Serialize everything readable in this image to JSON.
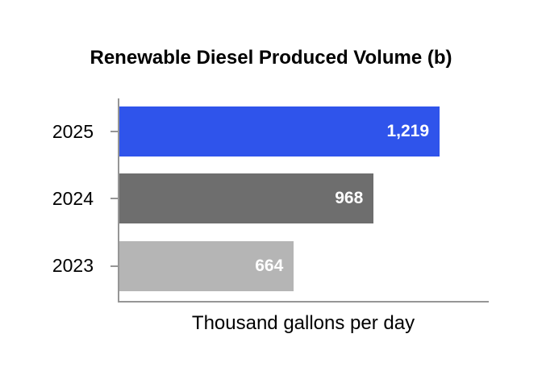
{
  "chart_data": {
    "type": "bar",
    "orientation": "horizontal",
    "title": "Renewable Diesel Produced Volume (b)",
    "xlabel": "Thousand gallons per day",
    "ylabel": "",
    "categories": [
      "2025",
      "2024",
      "2023"
    ],
    "values": [
      1219,
      968,
      664
    ],
    "value_labels": [
      "1,219",
      "968",
      "664"
    ],
    "xlim": [
      0,
      1400
    ],
    "grid": false,
    "legend": false,
    "bar_colors": [
      "#2F54EB",
      "#6E6E6E",
      "#B5B5B5"
    ],
    "value_label_color": "#FFFFFF",
    "axis_color": "#969696",
    "title_color": "#000000",
    "tick_label_color": "#000000"
  }
}
